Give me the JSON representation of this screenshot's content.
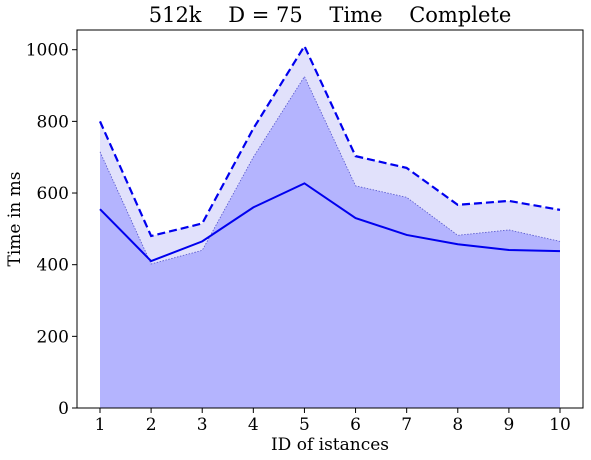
{
  "chart_data": {
    "type": "area",
    "title": "512k    D = 75    Time    Complete",
    "xlabel": "ID of istances",
    "ylabel": "Time in ms",
    "x": [
      1,
      2,
      3,
      4,
      5,
      6,
      7,
      8,
      9,
      10
    ],
    "xlim": [
      0.55,
      10.45
    ],
    "ylim": [
      0,
      1055
    ],
    "yticks": [
      0,
      200,
      400,
      600,
      800,
      1000
    ],
    "grid": false,
    "series": [
      {
        "style": "upper-dashed-line",
        "color": "#0000ee",
        "values": [
          800,
          480,
          515,
          780,
          1010,
          703,
          670,
          567,
          578,
          553
        ]
      },
      {
        "style": "solid-line",
        "color": "#0000ee",
        "values": [
          555,
          410,
          465,
          560,
          627,
          530,
          483,
          457,
          441,
          438
        ]
      },
      {
        "style": "lower-band-edge",
        "color": "#5555cc",
        "values": [
          715,
          402,
          440,
          700,
          925,
          620,
          588,
          482,
          497,
          465
        ]
      }
    ],
    "fill_colors": {
      "outer_band": "#e1e1fb",
      "inner_area": "#b4b4fe"
    }
  }
}
